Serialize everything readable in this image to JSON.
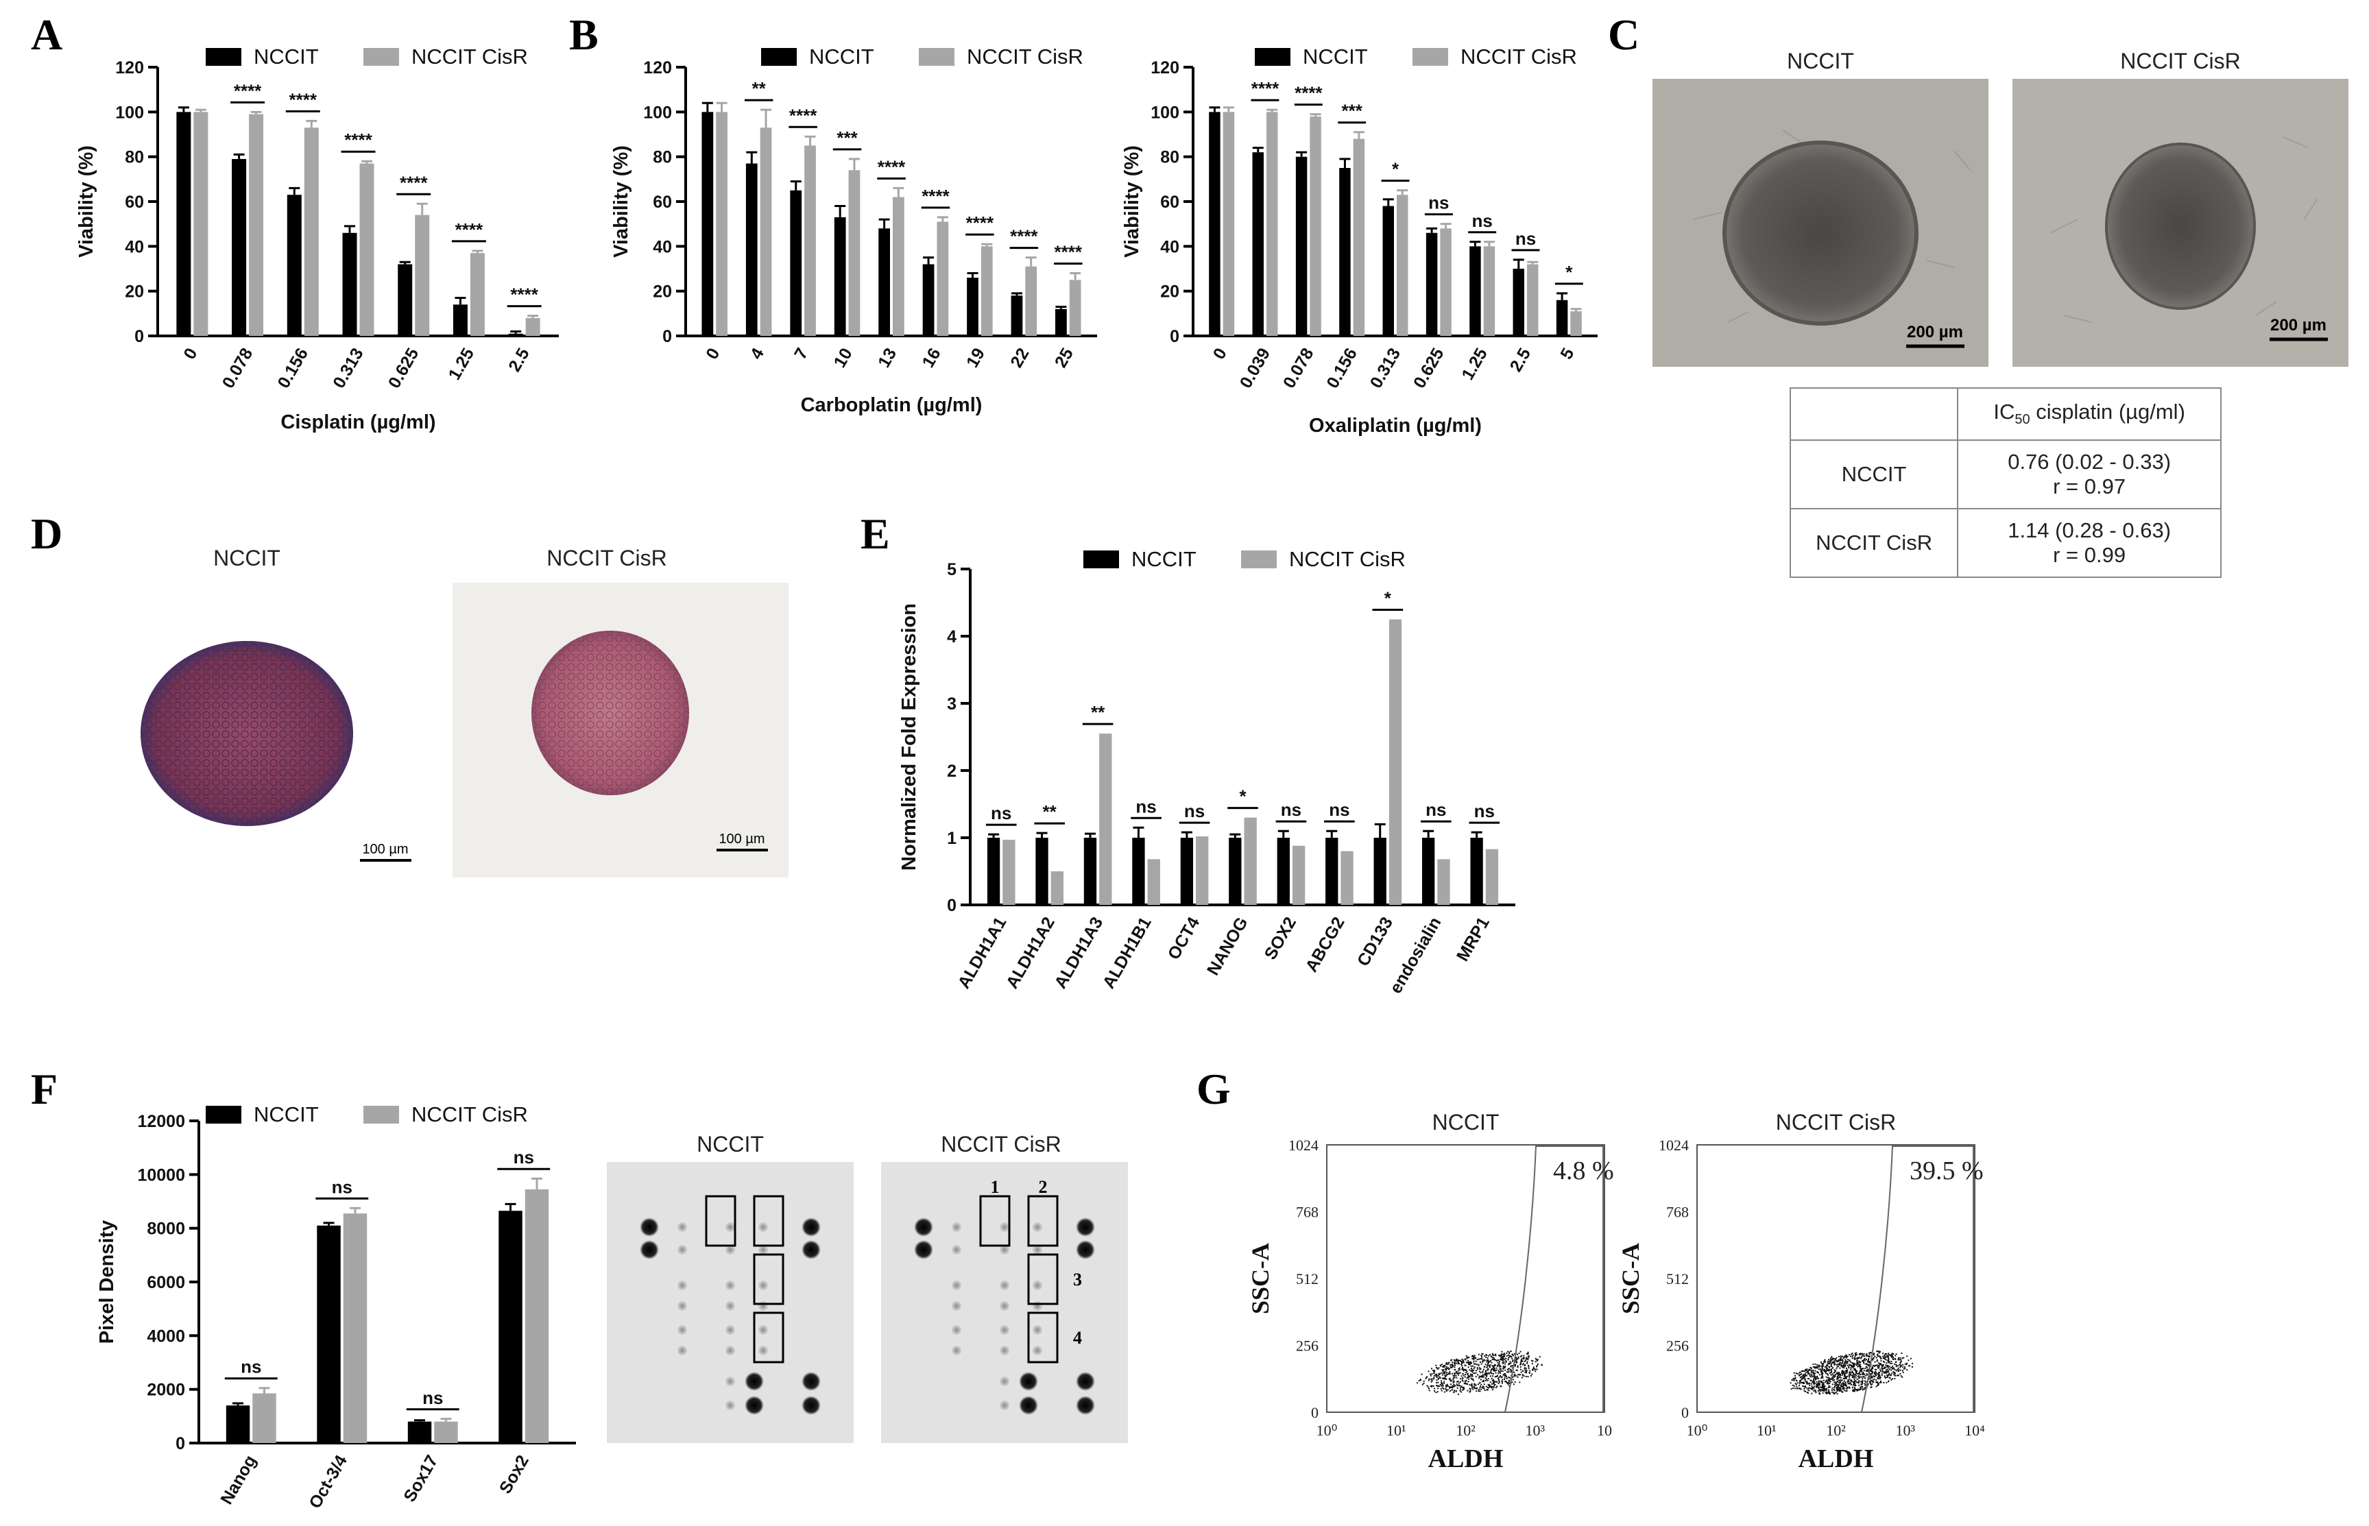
{
  "panels": {
    "A": "A",
    "B": "B",
    "C": "C",
    "D": "D",
    "E": "E",
    "F": "F",
    "G": "G"
  },
  "colors": {
    "nccit": "#000000",
    "cisr": "#a6a6a6"
  },
  "legend": {
    "nccit": "NCCIT",
    "cisr": "NCCIT CisR"
  },
  "chart_data": [
    {
      "id": "A",
      "type": "bar",
      "title": "",
      "xlabel": "Cisplatin (µg/ml)",
      "ylabel": "Viability (%)",
      "ylim": [
        0,
        120
      ],
      "yticks": [
        "0",
        "20",
        "40",
        "60",
        "80",
        "100",
        "120"
      ],
      "categories": [
        "0",
        "0.078",
        "0.156",
        "0.313",
        "0.625",
        "1.25",
        "2.5"
      ],
      "series": [
        {
          "name": "NCCIT",
          "values": [
            100,
            79,
            63,
            46,
            32,
            14,
            1
          ],
          "errors": [
            2,
            2,
            3,
            3,
            1,
            3,
            1
          ]
        },
        {
          "name": "NCCIT CisR",
          "values": [
            100,
            99,
            93,
            77,
            54,
            37,
            8
          ],
          "errors": [
            1,
            1,
            3,
            1,
            5,
            1,
            1
          ]
        }
      ],
      "significance": [
        "",
        "****",
        "****",
        "****",
        "****",
        "****",
        "****"
      ]
    },
    {
      "id": "B1",
      "type": "bar",
      "title": "",
      "xlabel": "Carboplatin (µg/ml)",
      "ylabel": "Viability (%)",
      "ylim": [
        0,
        120
      ],
      "yticks": [
        "0",
        "20",
        "40",
        "60",
        "80",
        "100",
        "120"
      ],
      "categories": [
        "0",
        "4",
        "7",
        "10",
        "13",
        "16",
        "19",
        "22",
        "25"
      ],
      "series": [
        {
          "name": "NCCIT",
          "values": [
            100,
            77,
            65,
            53,
            48,
            32,
            26,
            18,
            12
          ],
          "errors": [
            4,
            5,
            4,
            5,
            4,
            3,
            2,
            1,
            1
          ]
        },
        {
          "name": "NCCIT CisR",
          "values": [
            100,
            93,
            85,
            74,
            62,
            51,
            40,
            31,
            25
          ],
          "errors": [
            4,
            8,
            4,
            5,
            4,
            2,
            1,
            4,
            3
          ]
        }
      ],
      "significance": [
        "",
        "**",
        "****",
        "***",
        "****",
        "****",
        "****",
        "****",
        "****"
      ]
    },
    {
      "id": "B2",
      "type": "bar",
      "title": "",
      "xlabel": "Oxaliplatin (µg/ml)",
      "ylabel": "Viability (%)",
      "ylim": [
        0,
        120
      ],
      "yticks": [
        "0",
        "20",
        "40",
        "60",
        "80",
        "100",
        "120"
      ],
      "categories": [
        "0",
        "0.039",
        "0.078",
        "0.156",
        "0.313",
        "0.625",
        "1.25",
        "2.5",
        "5"
      ],
      "series": [
        {
          "name": "NCCIT",
          "values": [
            100,
            82,
            80,
            75,
            58,
            46,
            40,
            30,
            16
          ],
          "errors": [
            2,
            2,
            2,
            4,
            3,
            2,
            2,
            4,
            3
          ]
        },
        {
          "name": "NCCIT CisR",
          "values": [
            100,
            100,
            98,
            88,
            63,
            48,
            40,
            32,
            11
          ],
          "errors": [
            2,
            1,
            1,
            3,
            2,
            2,
            2,
            1,
            1
          ]
        }
      ],
      "significance": [
        "",
        "****",
        "****",
        "***",
        "*",
        "ns",
        "ns",
        "ns",
        "*"
      ]
    },
    {
      "id": "E",
      "type": "bar",
      "title": "",
      "xlabel": "",
      "ylabel": "Normalized Fold Expression",
      "ylim": [
        0,
        5
      ],
      "yticks": [
        "0",
        "1",
        "2",
        "3",
        "4",
        "5"
      ],
      "categories": [
        "ALDH1A1",
        "ALDH1A2",
        "ALDH1A3",
        "ALDH1B1",
        "OCT4",
        "NANOG",
        "SOX2",
        "ABCG2",
        "CD133",
        "endosialin",
        "MRP1"
      ],
      "series": [
        {
          "name": "NCCIT",
          "values": [
            1.0,
            1.0,
            1.0,
            1.0,
            1.0,
            1.0,
            1.0,
            1.0,
            1.0,
            1.0,
            1.0
          ],
          "errors": [
            0.05,
            0.07,
            0.06,
            0.15,
            0.08,
            0.05,
            0.1,
            0.1,
            0.2,
            0.1,
            0.08
          ]
        },
        {
          "name": "NCCIT CisR",
          "values": [
            0.97,
            0.5,
            2.55,
            0.68,
            1.02,
            1.3,
            0.88,
            0.8,
            4.25,
            0.68,
            0.83
          ]
        }
      ],
      "significance": [
        "ns",
        "**",
        "**",
        "ns",
        "ns",
        "*",
        "ns",
        "ns",
        "*",
        "ns",
        "ns"
      ]
    },
    {
      "id": "F",
      "type": "bar",
      "title": "",
      "xlabel": "",
      "ylabel": "Pixel Density",
      "ylim": [
        0,
        12000
      ],
      "yticks": [
        "0",
        "2000",
        "4000",
        "6000",
        "8000",
        "10000",
        "12000"
      ],
      "categories": [
        "Nanog",
        "Oct-3/4",
        "Sox17",
        "Sox2"
      ],
      "series": [
        {
          "name": "NCCIT",
          "values": [
            1400,
            8100,
            800,
            8650
          ],
          "errors": [
            80,
            100,
            50,
            250
          ]
        },
        {
          "name": "NCCIT CisR",
          "values": [
            1850,
            8550,
            800,
            9450
          ],
          "errors": [
            200,
            200,
            100,
            400
          ]
        }
      ],
      "significance": [
        "ns",
        "ns",
        "ns",
        "ns"
      ]
    }
  ],
  "panel_c": {
    "titles": [
      "NCCIT",
      "NCCIT CisR"
    ],
    "scale_bar": "200 µm",
    "table": {
      "header_label": "IC",
      "header_sub": "50",
      "header_rest": " cisplatin (µg/ml)",
      "rows": [
        {
          "cell": "NCCIT",
          "value": "0.76 (0.02 - 0.33)",
          "r": "r = 0.97"
        },
        {
          "cell": "NCCIT CisR",
          "value": "1.14 (0.28 - 0.63)",
          "r": "r = 0.99"
        }
      ]
    }
  },
  "panel_d": {
    "titles": [
      "NCCIT",
      "NCCIT CisR"
    ],
    "scale_bar": "100 µm"
  },
  "blot": {
    "titles": [
      "NCCIT",
      "NCCIT CisR"
    ],
    "marks": [
      "1",
      "2",
      "3",
      "4"
    ]
  },
  "flow": {
    "titles": [
      "NCCIT",
      "NCCIT CisR"
    ],
    "percent": [
      "4.8 %",
      "39.5 %"
    ],
    "xlabel": "ALDH",
    "ylabel": "SSC-A",
    "yticks": [
      "0",
      "256",
      "512",
      "768",
      "1024"
    ],
    "xticks_left": [
      "10⁰",
      "10¹",
      "10²",
      "10³",
      "10"
    ],
    "xticks_right": [
      "10⁰",
      "10¹",
      "10²",
      "10³",
      "10⁴"
    ]
  }
}
